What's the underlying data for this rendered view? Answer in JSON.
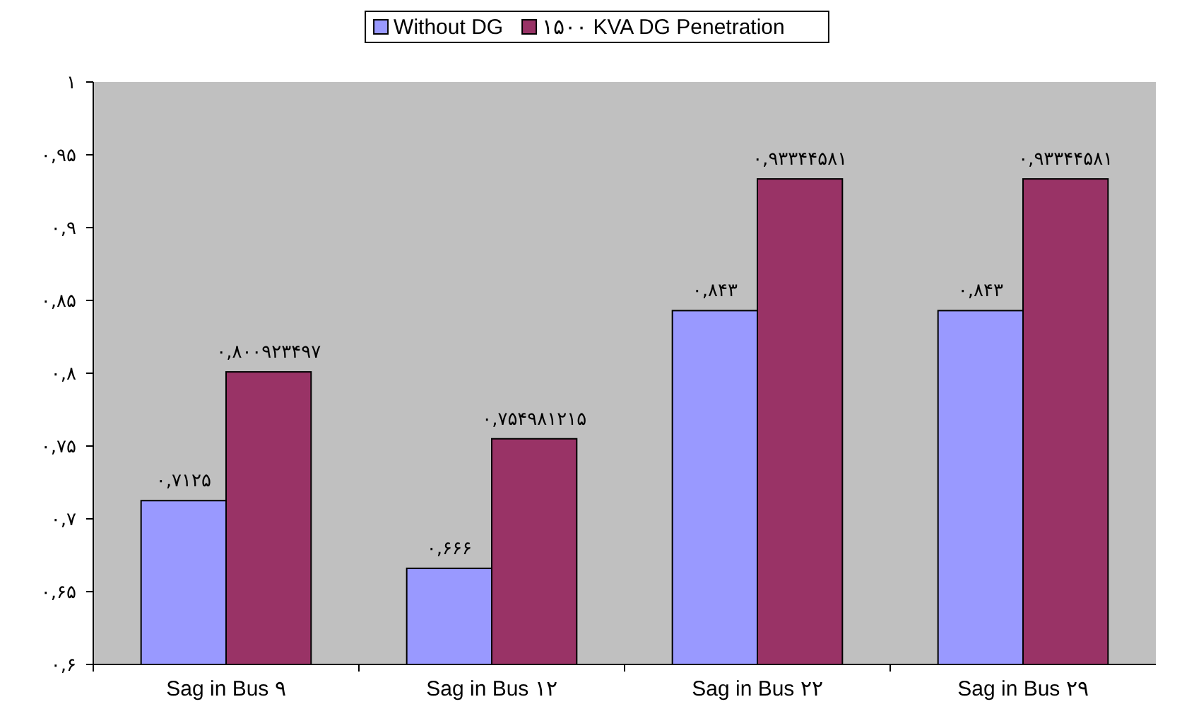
{
  "chart_data": {
    "type": "bar",
    "categories": [
      "Sag in Bus ۹",
      "Sag in Bus ۱۲",
      "Sag in Bus ۲۲",
      "Sag in Bus ۲۹"
    ],
    "series": [
      {
        "name": "Without DG",
        "color": "#9999ff",
        "values": [
          0.7125,
          0.666,
          0.843,
          0.843
        ],
        "value_labels": [
          "۰,۷۱۲۵",
          "۰,۶۶۶",
          "۰,۸۴۳",
          "۰,۸۴۳"
        ]
      },
      {
        "name": "۱۵۰۰ KVA DG Penetration",
        "color": "#993366",
        "values": [
          0.800923497,
          0.754981215,
          0.93344581,
          0.93344581
        ],
        "value_labels": [
          "۰,۸۰۰۹۲۳۴۹۷",
          "۰,۷۵۴۹۸۱۲۱۵",
          "۰,۹۳۳۴۴۵۸۱",
          "۰,۹۳۳۴۴۵۸۱"
        ]
      }
    ],
    "ylim": [
      0.6,
      1
    ],
    "yticks": [
      {
        "value": 0.6,
        "label": "۰,۶"
      },
      {
        "value": 0.65,
        "label": "۰,۶۵"
      },
      {
        "value": 0.7,
        "label": "۰,۷"
      },
      {
        "value": 0.75,
        "label": "۰,۷۵"
      },
      {
        "value": 0.8,
        "label": "۰,۸"
      },
      {
        "value": 0.85,
        "label": "۰,۸۵"
      },
      {
        "value": 0.9,
        "label": "۰,۹"
      },
      {
        "value": 0.95,
        "label": "۰,۹۵"
      },
      {
        "value": 1,
        "label": "۱"
      }
    ],
    "grid": false,
    "legend": "top"
  }
}
